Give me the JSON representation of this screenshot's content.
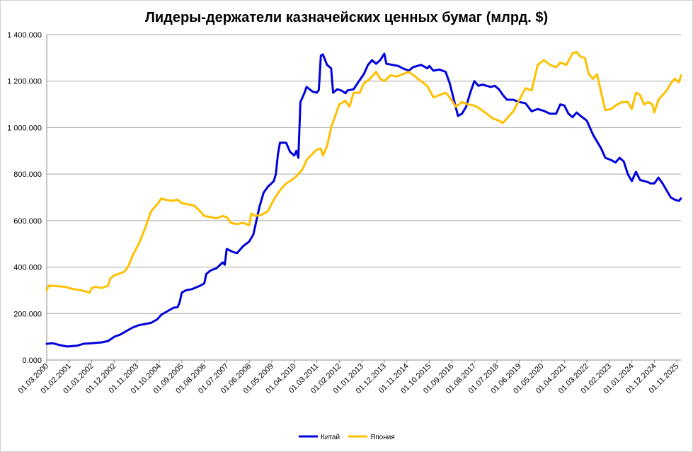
{
  "chart_data": {
    "type": "line",
    "title": "Лидеры-держатели казначейских ценных бумаг (млрд. $)",
    "xlabel": "",
    "ylabel": "",
    "ylim": [
      0,
      1400000
    ],
    "y_ticks": [
      "0.000",
      "200.000",
      "400.000",
      "600.000",
      "800.000",
      "1 000.000",
      "1 200.000",
      "1 400.000"
    ],
    "y_tick_values": [
      0,
      200000,
      400000,
      600000,
      800000,
      1000000,
      1200000,
      1400000
    ],
    "x_range": [
      "2000-03-01",
      "2026-01-01"
    ],
    "x_ticks": [
      "01.03.2000",
      "01.02.2001",
      "01.01.2002",
      "01.12.2002",
      "01.11.2003",
      "01.10.2004",
      "01.09.2005",
      "01.08.2006",
      "01.07.2007",
      "01.06.2008",
      "01.05.2009",
      "01.04.2010",
      "01.03.2011",
      "01.02.2012",
      "01.01.2013",
      "01.12.2013",
      "01.11.2014",
      "01.10.2015",
      "01.09.2016",
      "01.08.2017",
      "01.07.2018",
      "01.06.2019",
      "01.05.2020",
      "01.04.2021",
      "01.03.2022",
      "01.02.2023",
      "01.01.2024",
      "01.12.2024",
      "01.11.2025"
    ],
    "grid": true,
    "legend_position": "bottom",
    "series": [
      {
        "name": "Китай",
        "color": "#0000dd",
        "points": [
          [
            "2000-03",
            70000
          ],
          [
            "2000-06",
            72000
          ],
          [
            "2000-09",
            65000
          ],
          [
            "2001-01",
            58000
          ],
          [
            "2001-06",
            62000
          ],
          [
            "2001-09",
            70000
          ],
          [
            "2002-01",
            72000
          ],
          [
            "2002-06",
            76000
          ],
          [
            "2002-09",
            82000
          ],
          [
            "2002-12",
            100000
          ],
          [
            "2003-03",
            110000
          ],
          [
            "2003-06",
            125000
          ],
          [
            "2003-09",
            140000
          ],
          [
            "2003-12",
            150000
          ],
          [
            "2004-03",
            155000
          ],
          [
            "2004-06",
            160000
          ],
          [
            "2004-09",
            175000
          ],
          [
            "2004-11",
            195000
          ],
          [
            "2005-02",
            210000
          ],
          [
            "2005-05",
            225000
          ],
          [
            "2005-07",
            228000
          ],
          [
            "2005-08",
            250000
          ],
          [
            "2005-09",
            290000
          ],
          [
            "2005-11",
            300000
          ],
          [
            "2006-02",
            305000
          ],
          [
            "2006-06",
            320000
          ],
          [
            "2006-08",
            330000
          ],
          [
            "2006-09",
            370000
          ],
          [
            "2006-11",
            385000
          ],
          [
            "2007-02",
            395000
          ],
          [
            "2007-05",
            420000
          ],
          [
            "2007-06",
            410000
          ],
          [
            "2007-07",
            478000
          ],
          [
            "2007-10",
            465000
          ],
          [
            "2007-12",
            460000
          ],
          [
            "2008-03",
            490000
          ],
          [
            "2008-06",
            510000
          ],
          [
            "2008-08",
            540000
          ],
          [
            "2008-09",
            580000
          ],
          [
            "2008-11",
            660000
          ],
          [
            "2009-01",
            720000
          ],
          [
            "2009-03",
            745000
          ],
          [
            "2009-06",
            770000
          ],
          [
            "2009-07",
            800000
          ],
          [
            "2009-08",
            885000
          ],
          [
            "2009-09",
            935000
          ],
          [
            "2009-12",
            935000
          ],
          [
            "2010-02",
            895000
          ],
          [
            "2010-04",
            880000
          ],
          [
            "2010-05",
            900000
          ],
          [
            "2010-06",
            870000
          ],
          [
            "2010-07",
            1110000
          ],
          [
            "2010-09",
            1150000
          ],
          [
            "2010-10",
            1175000
          ],
          [
            "2011-01",
            1155000
          ],
          [
            "2011-03",
            1150000
          ],
          [
            "2011-04",
            1162000
          ],
          [
            "2011-05",
            1310000
          ],
          [
            "2011-06",
            1315000
          ],
          [
            "2011-08",
            1270000
          ],
          [
            "2011-10",
            1255000
          ],
          [
            "2011-11",
            1150000
          ],
          [
            "2012-01",
            1165000
          ],
          [
            "2012-03",
            1160000
          ],
          [
            "2012-05",
            1148000
          ],
          [
            "2012-06",
            1160000
          ],
          [
            "2012-09",
            1165000
          ],
          [
            "2012-12",
            1205000
          ],
          [
            "2013-02",
            1230000
          ],
          [
            "2013-04",
            1270000
          ],
          [
            "2013-06",
            1290000
          ],
          [
            "2013-08",
            1275000
          ],
          [
            "2013-10",
            1290000
          ],
          [
            "2013-12",
            1318000
          ],
          [
            "2014-01",
            1275000
          ],
          [
            "2014-04",
            1270000
          ],
          [
            "2014-07",
            1265000
          ],
          [
            "2014-09",
            1255000
          ],
          [
            "2014-12",
            1245000
          ],
          [
            "2015-02",
            1260000
          ],
          [
            "2015-06",
            1270000
          ],
          [
            "2015-09",
            1255000
          ],
          [
            "2015-10",
            1265000
          ],
          [
            "2015-12",
            1245000
          ],
          [
            "2016-03",
            1250000
          ],
          [
            "2016-06",
            1240000
          ],
          [
            "2016-08",
            1190000
          ],
          [
            "2016-10",
            1120000
          ],
          [
            "2016-12",
            1050000
          ],
          [
            "2017-02",
            1060000
          ],
          [
            "2017-04",
            1090000
          ],
          [
            "2017-06",
            1150000
          ],
          [
            "2017-08",
            1200000
          ],
          [
            "2017-10",
            1180000
          ],
          [
            "2017-12",
            1185000
          ],
          [
            "2018-02",
            1180000
          ],
          [
            "2018-04",
            1175000
          ],
          [
            "2018-06",
            1180000
          ],
          [
            "2018-08",
            1165000
          ],
          [
            "2018-10",
            1140000
          ],
          [
            "2018-12",
            1120000
          ],
          [
            "2019-03",
            1120000
          ],
          [
            "2019-06",
            1110000
          ],
          [
            "2019-09",
            1105000
          ],
          [
            "2019-12",
            1070000
          ],
          [
            "2020-03",
            1080000
          ],
          [
            "2020-06",
            1072000
          ],
          [
            "2020-09",
            1060000
          ],
          [
            "2020-12",
            1060000
          ],
          [
            "2021-02",
            1100000
          ],
          [
            "2021-04",
            1095000
          ],
          [
            "2021-06",
            1060000
          ],
          [
            "2021-08",
            1045000
          ],
          [
            "2021-10",
            1065000
          ],
          [
            "2021-12",
            1050000
          ],
          [
            "2022-03",
            1030000
          ],
          [
            "2022-05",
            990000
          ],
          [
            "2022-06",
            970000
          ],
          [
            "2022-08",
            940000
          ],
          [
            "2022-10",
            910000
          ],
          [
            "2022-12",
            870000
          ],
          [
            "2023-03",
            860000
          ],
          [
            "2023-05",
            850000
          ],
          [
            "2023-07",
            870000
          ],
          [
            "2023-09",
            855000
          ],
          [
            "2023-11",
            800000
          ],
          [
            "2024-01",
            770000
          ],
          [
            "2024-03",
            810000
          ],
          [
            "2024-05",
            775000
          ],
          [
            "2024-07",
            770000
          ],
          [
            "2024-09",
            765000
          ],
          [
            "2024-10",
            760000
          ],
          [
            "2024-12",
            760000
          ],
          [
            "2025-02",
            785000
          ],
          [
            "2025-04",
            760000
          ],
          [
            "2025-06",
            730000
          ],
          [
            "2025-08",
            700000
          ],
          [
            "2025-10",
            690000
          ],
          [
            "2025-12",
            685000
          ],
          [
            "2026-01",
            695000
          ]
        ]
      },
      {
        "name": "Япония",
        "color": "#ffc000",
        "points": [
          [
            "2000-03",
            300000
          ],
          [
            "2000-04",
            320000
          ],
          [
            "2000-08",
            318000
          ],
          [
            "2000-12",
            315000
          ],
          [
            "2001-04",
            305000
          ],
          [
            "2001-08",
            300000
          ],
          [
            "2001-12",
            290000
          ],
          [
            "2002-01",
            310000
          ],
          [
            "2002-03",
            315000
          ],
          [
            "2002-06",
            310000
          ],
          [
            "2002-09",
            320000
          ],
          [
            "2002-10",
            350000
          ],
          [
            "2002-12",
            365000
          ],
          [
            "2003-02",
            370000
          ],
          [
            "2003-05",
            380000
          ],
          [
            "2003-07",
            405000
          ],
          [
            "2003-09",
            450000
          ],
          [
            "2003-12",
            500000
          ],
          [
            "2004-03",
            565000
          ],
          [
            "2004-06",
            640000
          ],
          [
            "2004-09",
            670000
          ],
          [
            "2004-11",
            695000
          ],
          [
            "2005-01",
            690000
          ],
          [
            "2005-04",
            685000
          ],
          [
            "2005-07",
            690000
          ],
          [
            "2005-09",
            675000
          ],
          [
            "2005-12",
            670000
          ],
          [
            "2006-03",
            665000
          ],
          [
            "2006-06",
            640000
          ],
          [
            "2006-08",
            620000
          ],
          [
            "2006-11",
            615000
          ],
          [
            "2007-02",
            610000
          ],
          [
            "2007-05",
            620000
          ],
          [
            "2007-07",
            615000
          ],
          [
            "2007-09",
            590000
          ],
          [
            "2007-12",
            585000
          ],
          [
            "2008-03",
            590000
          ],
          [
            "2008-06",
            580000
          ],
          [
            "2008-07",
            630000
          ],
          [
            "2008-09",
            620000
          ],
          [
            "2008-12",
            625000
          ],
          [
            "2009-03",
            640000
          ],
          [
            "2009-06",
            690000
          ],
          [
            "2009-09",
            730000
          ],
          [
            "2009-12",
            760000
          ],
          [
            "2010-02",
            770000
          ],
          [
            "2010-05",
            790000
          ],
          [
            "2010-08",
            820000
          ],
          [
            "2010-10",
            860000
          ],
          [
            "2010-12",
            880000
          ],
          [
            "2011-03",
            905000
          ],
          [
            "2011-05",
            910000
          ],
          [
            "2011-06",
            880000
          ],
          [
            "2011-08",
            920000
          ],
          [
            "2011-10",
            1000000
          ],
          [
            "2011-12",
            1050000
          ],
          [
            "2012-02",
            1100000
          ],
          [
            "2012-05",
            1115000
          ],
          [
            "2012-07",
            1090000
          ],
          [
            "2012-09",
            1150000
          ],
          [
            "2012-12",
            1150000
          ],
          [
            "2013-02",
            1190000
          ],
          [
            "2013-05",
            1210000
          ],
          [
            "2013-08",
            1240000
          ],
          [
            "2013-10",
            1210000
          ],
          [
            "2013-12",
            1200000
          ],
          [
            "2014-03",
            1225000
          ],
          [
            "2014-06",
            1220000
          ],
          [
            "2014-09",
            1230000
          ],
          [
            "2014-12",
            1240000
          ],
          [
            "2015-03",
            1220000
          ],
          [
            "2015-06",
            1200000
          ],
          [
            "2015-09",
            1180000
          ],
          [
            "2015-12",
            1130000
          ],
          [
            "2016-03",
            1140000
          ],
          [
            "2016-06",
            1150000
          ],
          [
            "2016-08",
            1130000
          ],
          [
            "2016-11",
            1090000
          ],
          [
            "2017-02",
            1110000
          ],
          [
            "2017-05",
            1100000
          ],
          [
            "2017-08",
            1095000
          ],
          [
            "2017-11",
            1080000
          ],
          [
            "2018-02",
            1060000
          ],
          [
            "2018-05",
            1040000
          ],
          [
            "2018-08",
            1030000
          ],
          [
            "2018-10",
            1020000
          ],
          [
            "2018-12",
            1040000
          ],
          [
            "2019-03",
            1070000
          ],
          [
            "2019-06",
            1120000
          ],
          [
            "2019-09",
            1170000
          ],
          [
            "2019-12",
            1160000
          ],
          [
            "2020-03",
            1270000
          ],
          [
            "2020-06",
            1290000
          ],
          [
            "2020-09",
            1270000
          ],
          [
            "2020-12",
            1260000
          ],
          [
            "2021-02",
            1280000
          ],
          [
            "2021-05",
            1270000
          ],
          [
            "2021-08",
            1320000
          ],
          [
            "2021-10",
            1325000
          ],
          [
            "2021-12",
            1305000
          ],
          [
            "2022-02",
            1300000
          ],
          [
            "2022-04",
            1230000
          ],
          [
            "2022-06",
            1210000
          ],
          [
            "2022-08",
            1230000
          ],
          [
            "2022-10",
            1150000
          ],
          [
            "2022-12",
            1075000
          ],
          [
            "2023-03",
            1080000
          ],
          [
            "2023-05",
            1095000
          ],
          [
            "2023-08",
            1110000
          ],
          [
            "2023-11",
            1110000
          ],
          [
            "2024-01",
            1080000
          ],
          [
            "2024-03",
            1150000
          ],
          [
            "2024-05",
            1140000
          ],
          [
            "2024-07",
            1100000
          ],
          [
            "2024-09",
            1110000
          ],
          [
            "2024-11",
            1100000
          ],
          [
            "2024-12",
            1065000
          ],
          [
            "2025-02",
            1120000
          ],
          [
            "2025-04",
            1140000
          ],
          [
            "2025-06",
            1160000
          ],
          [
            "2025-08",
            1190000
          ],
          [
            "2025-10",
            1210000
          ],
          [
            "2025-12",
            1195000
          ],
          [
            "2026-01",
            1225000
          ]
        ]
      }
    ]
  }
}
